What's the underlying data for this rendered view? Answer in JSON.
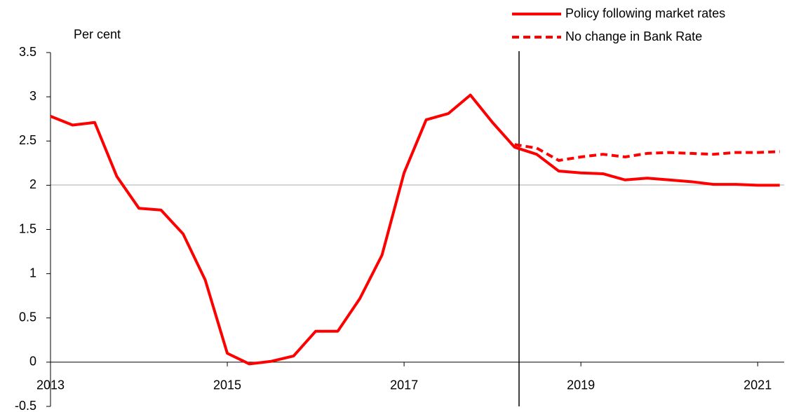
{
  "chart_data": {
    "type": "line",
    "y_label": "Per cent",
    "x": [
      2013,
      2013.25,
      2013.5,
      2013.75,
      2014,
      2014.25,
      2014.5,
      2014.75,
      2015,
      2015.25,
      2015.5,
      2015.75,
      2016,
      2016.25,
      2016.5,
      2016.75,
      2017,
      2017.25,
      2017.5,
      2017.75,
      2018,
      2018.25,
      2018.5,
      2018.75,
      2019,
      2019.25,
      2019.5,
      2019.75,
      2020,
      2020.25,
      2020.5,
      2020.75,
      2021,
      2021.25
    ],
    "series": [
      {
        "name": "Policy following market rates",
        "color": "#ff0000",
        "dash": false,
        "values": [
          2.78,
          2.68,
          2.71,
          2.1,
          1.74,
          1.72,
          1.45,
          0.93,
          0.1,
          -0.02,
          0.01,
          0.07,
          0.35,
          0.35,
          0.72,
          1.21,
          2.14,
          2.74,
          2.81,
          3.02,
          2.71,
          2.43,
          2.35,
          2.16,
          2.14,
          2.13,
          2.06,
          2.08,
          2.06,
          2.04,
          2.01,
          2.01,
          2.0,
          2.0
        ]
      },
      {
        "name": "No change in Bank Rate",
        "color": "#ff0000",
        "dash": true,
        "values": [
          null,
          null,
          null,
          null,
          null,
          null,
          null,
          null,
          null,
          null,
          null,
          null,
          null,
          null,
          null,
          null,
          null,
          null,
          null,
          null,
          null,
          2.46,
          2.42,
          2.28,
          2.32,
          2.35,
          2.32,
          2.36,
          2.37,
          2.36,
          2.35,
          2.37,
          2.37,
          2.38
        ]
      }
    ],
    "xlim": [
      2013,
      2021.3
    ],
    "xticks": [
      2013,
      2015,
      2017,
      2019,
      2021
    ],
    "ylim": [
      -0.5,
      3.5
    ],
    "yticks": [
      -0.5,
      0,
      0.5,
      1,
      1.5,
      2,
      2.5,
      3,
      3.5
    ]
  }
}
